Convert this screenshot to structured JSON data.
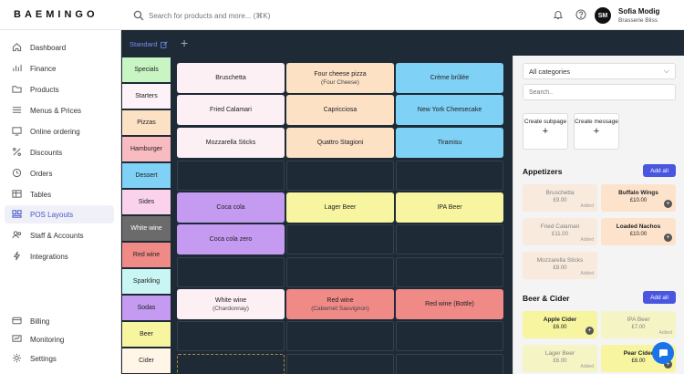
{
  "brand": "BAEMINGO",
  "search": {
    "placeholder": "Search for products and more... (⌘K)"
  },
  "user": {
    "initials": "SM",
    "name": "Sofia Modig",
    "business": "Brasserie Bliss"
  },
  "nav": [
    {
      "label": "Dashboard",
      "icon": "home-icon"
    },
    {
      "label": "Finance",
      "icon": "bar-chart-icon"
    },
    {
      "label": "Products",
      "icon": "folder-icon"
    },
    {
      "label": "Menus & Prices",
      "icon": "menu-list-icon"
    },
    {
      "label": "Online ordering",
      "icon": "monitor-icon"
    },
    {
      "label": "Discounts",
      "icon": "percent-icon"
    },
    {
      "label": "Orders",
      "icon": "orders-icon"
    },
    {
      "label": "Tables",
      "icon": "table-icon"
    },
    {
      "label": "POS Layouts",
      "icon": "pos-layout-icon",
      "active": true
    },
    {
      "label": "Staff & Accounts",
      "icon": "users-icon"
    },
    {
      "label": "Integrations",
      "icon": "integrations-icon"
    }
  ],
  "nav_bottom": [
    {
      "label": "Billing",
      "icon": "billing-icon"
    },
    {
      "label": "Monitoring",
      "icon": "monitoring-icon"
    },
    {
      "label": "Settings",
      "icon": "gear-icon"
    }
  ],
  "layout_tab": "Standard",
  "categories": [
    {
      "label": "Specials",
      "color": "#c9f5c5"
    },
    {
      "label": "Starters",
      "color": "#fdf2f8"
    },
    {
      "label": "Pizzas",
      "color": "#fde1c5"
    },
    {
      "label": "Hamburger",
      "color": "#f8bcc0"
    },
    {
      "label": "Dessert",
      "color": "#7fd1f5"
    },
    {
      "label": "Sides",
      "color": "#fbd2ec"
    },
    {
      "label": "White wine",
      "color": "#6b6b6b"
    },
    {
      "label": "Red wine",
      "color": "#f08a86"
    },
    {
      "label": "Sparkling",
      "color": "#c9f6f4"
    },
    {
      "label": "Sodas",
      "color": "#c49bf0"
    },
    {
      "label": "Beer",
      "color": "#f7f5a0"
    },
    {
      "label": "Cider",
      "color": "#fff6e8"
    }
  ],
  "grid_buttons": [
    {
      "label": "Bruschetta",
      "sub": "",
      "color": "#fcf0f5"
    },
    {
      "label": "Four cheese pizza",
      "sub": "(Four Cheese)",
      "color": "#fde1c5"
    },
    {
      "label": "Crème brûlée",
      "sub": "",
      "color": "#7fd1f5"
    },
    {
      "label": "Fried Calamari",
      "sub": "",
      "color": "#fcf0f5"
    },
    {
      "label": "Capricciosa",
      "sub": "",
      "color": "#fde1c5"
    },
    {
      "label": "New York Cheesecake",
      "sub": "",
      "color": "#7fd1f5"
    },
    {
      "label": "Mozzarella Sticks",
      "sub": "",
      "color": "#fcf0f5"
    },
    {
      "label": "Quattro Stagioni",
      "sub": "",
      "color": "#fde1c5"
    },
    {
      "label": "Tiramisu",
      "sub": "",
      "color": "#7fd1f5"
    },
    {
      "label": "Coca cola",
      "sub": "",
      "color": "#c49bf0"
    },
    {
      "label": "Lager Beer",
      "sub": "",
      "color": "#f7f5a0"
    },
    {
      "label": "IPA Beer",
      "sub": "",
      "color": "#f7f5a0"
    },
    {
      "label": "Coca cola zero",
      "sub": "",
      "color": "#c49bf0"
    },
    {
      "label": "White wine",
      "sub": "(Chardonnay)",
      "color": "#fcf0f5"
    },
    {
      "label": "Red wine",
      "sub": "(Cabernet Sauvignon)",
      "color": "#f08a86"
    },
    {
      "label": "Red wine (Bottle)",
      "sub": "",
      "color": "#f08a86"
    }
  ],
  "panel": {
    "select_value": "All categories",
    "search_placeholder": "Search..",
    "create_subpage": "Create subpage",
    "create_message": "Create message",
    "add_all": "Add all",
    "added": "Added",
    "sections": [
      {
        "title": "Appetizers",
        "items": [
          {
            "name": "Bruschetta",
            "price": "£9.00",
            "added": true,
            "color": "#fde3cc"
          },
          {
            "name": "Buffalo Wings",
            "price": "£10.00",
            "added": false,
            "color": "#fde3cc"
          },
          {
            "name": "Fried Calamari",
            "price": "£11.00",
            "added": true,
            "color": "#fde3cc"
          },
          {
            "name": "Loaded Nachos",
            "price": "£10.00",
            "added": false,
            "color": "#fde3cc"
          },
          {
            "name": "Mozzarella Sticks",
            "price": "£8.00",
            "added": true,
            "color": "#fde3cc"
          }
        ]
      },
      {
        "title": "Beer & Cider",
        "items": [
          {
            "name": "Apple Cider",
            "price": "£6.00",
            "added": false,
            "color": "#f7f5a0"
          },
          {
            "name": "IPA Beer",
            "price": "£7.00",
            "added": true,
            "color": "#f7f5a0"
          },
          {
            "name": "Lager Beer",
            "price": "£6.00",
            "added": true,
            "color": "#f7f5a0"
          },
          {
            "name": "Pear Cider",
            "price": "£6.00",
            "added": false,
            "color": "#f7f5a0"
          }
        ]
      }
    ]
  }
}
